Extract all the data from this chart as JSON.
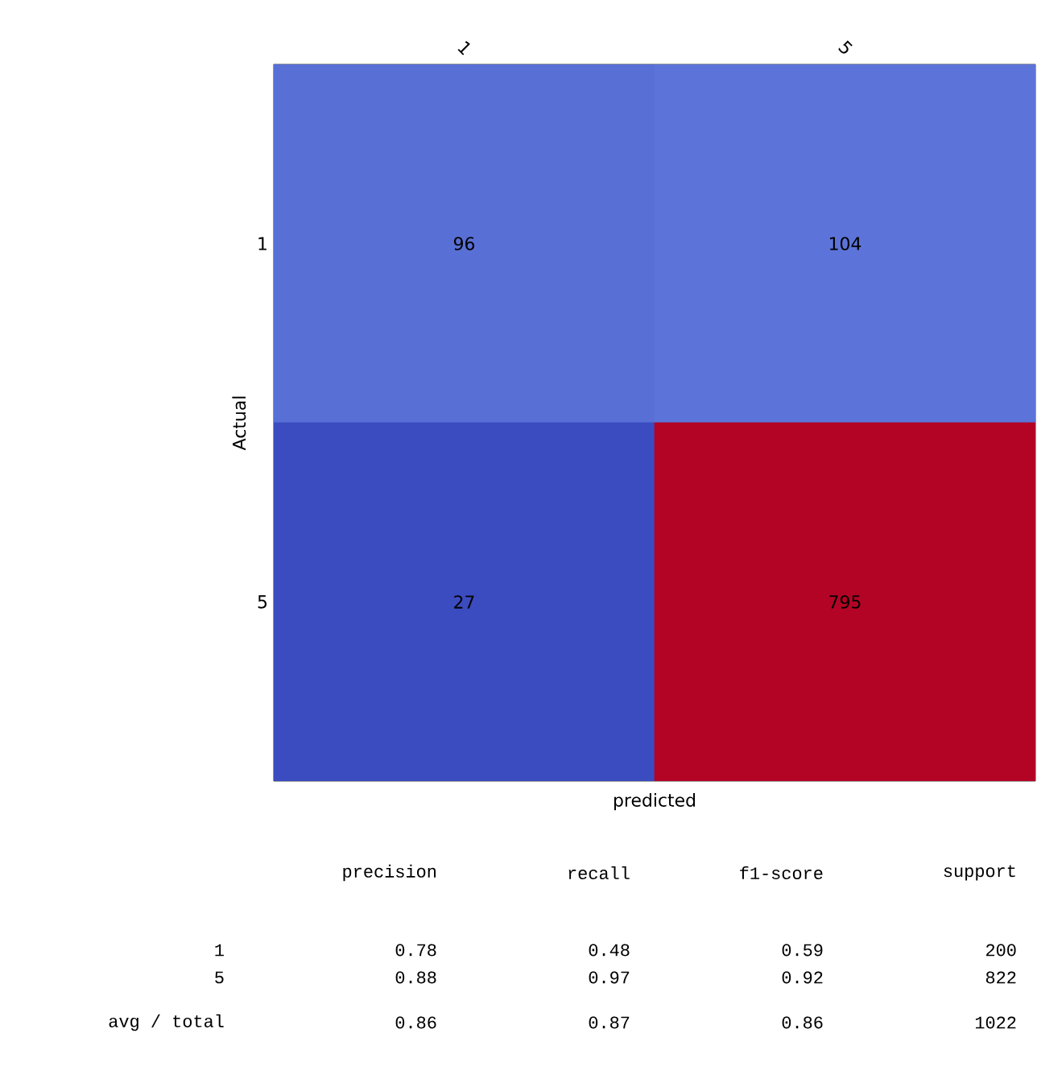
{
  "chart_data": {
    "type": "heatmap",
    "categories": [
      "1",
      "5"
    ],
    "y_categories": [
      "1",
      "5"
    ],
    "cells": [
      [
        96,
        104
      ],
      [
        27,
        795
      ]
    ],
    "data_labels": true,
    "xlabel": "predicted",
    "ylabel": "Actual",
    "annotations": [
      "precision",
      "recall",
      "f1-score",
      "support",
      "1",
      "0.78",
      "0.48",
      "0.59",
      "200",
      "5",
      "0.88",
      "0.97",
      "0.92",
      "822",
      "avg / total",
      "0.86",
      "0.87",
      "0.86",
      "1022"
    ]
  }
}
